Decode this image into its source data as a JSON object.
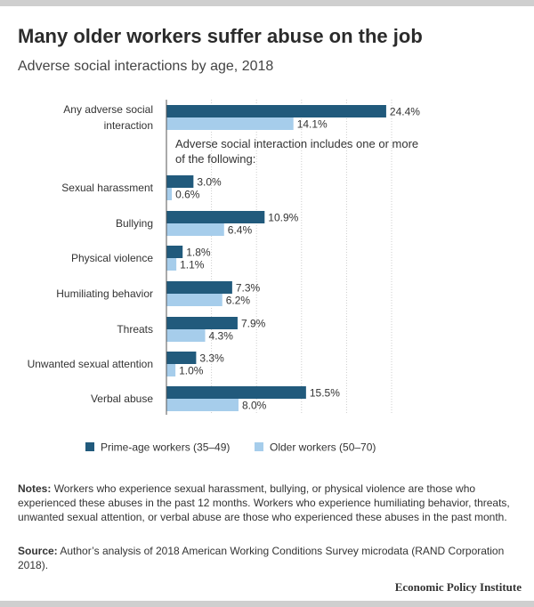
{
  "header": {
    "title": "Many older workers suffer abuse on the job",
    "subtitle": "Adverse social interactions by age, 2018"
  },
  "chart_data": {
    "type": "bar",
    "orientation": "horizontal",
    "categories": [
      [
        "Any adverse social",
        "interaction"
      ],
      [
        "Sexual harassment"
      ],
      [
        "Bullying"
      ],
      [
        "Physical violence"
      ],
      [
        "Humiliating behavior"
      ],
      [
        "Threats"
      ],
      [
        "Unwanted sexual attention"
      ],
      [
        "Verbal abuse"
      ]
    ],
    "series": [
      {
        "name": "Prime-age workers (35–49)",
        "color": "#215a7c",
        "values": [
          24.4,
          3.0,
          10.9,
          1.8,
          7.3,
          7.9,
          3.3,
          15.5
        ],
        "labels": [
          "24.4%",
          "3.0%",
          "10.9%",
          "1.8%",
          "7.3%",
          "7.9%",
          "3.3%",
          "15.5%"
        ]
      },
      {
        "name": "Older workers (50–70)",
        "color": "#a6cdeb",
        "values": [
          14.1,
          0.6,
          6.4,
          1.1,
          6.2,
          4.3,
          1.0,
          8.0
        ],
        "labels": [
          "14.1%",
          "0.6%",
          "6.4%",
          "1.1%",
          "6.2%",
          "4.3%",
          "1.0%",
          "8.0%"
        ]
      }
    ],
    "annotation": [
      "Adverse social interaction includes one or more",
      "of the following:"
    ],
    "xlim": [
      0,
      25
    ],
    "gridlines": [
      0,
      5,
      10,
      15,
      20,
      25
    ],
    "grid": true,
    "gridline_color": "#cccccc",
    "legend_position": "bottom"
  },
  "notes": {
    "label": "Notes:",
    "text": "Workers who experience sexual harassment, bullying, or physical violence are those who experienced these abuses in the past 12 months. Workers who experience humiliating behavior, threats, unwanted sexual attention, or verbal abuse are those who experienced these abuses in the past month."
  },
  "source": {
    "label": "Source:",
    "text": "Author’s analysis of 2018 American Working Conditions Survey microdata (RAND Corporation 2018)."
  },
  "branding": {
    "text": "Economic Policy Institute"
  }
}
